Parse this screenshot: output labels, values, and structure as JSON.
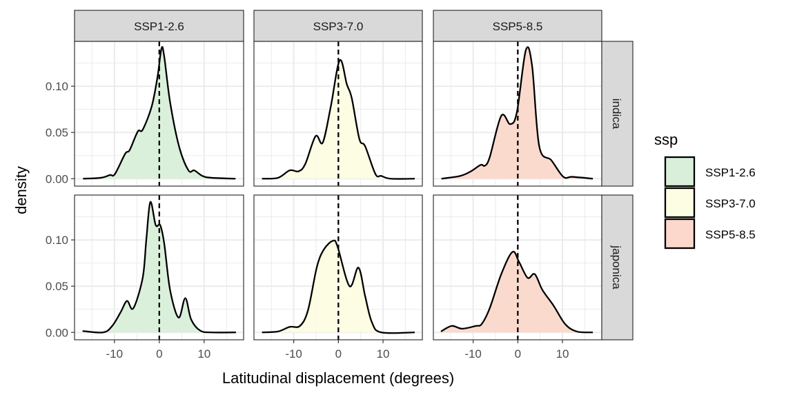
{
  "chart_data": {
    "type": "area",
    "subtype": "faceted density",
    "xlabel": "Latitudinal displacement (degrees)",
    "ylabel": "density",
    "xlim": [
      -18.9,
      18.8
    ],
    "ylim": [
      -0.008,
      0.1485
    ],
    "x_ticks": [
      -10,
      0,
      10
    ],
    "x_tick_labels": [
      "-10",
      "0",
      "10"
    ],
    "y_ticks": [
      0,
      0.05,
      0.1
    ],
    "y_tick_labels": [
      "0.00",
      "0.05",
      "0.10"
    ],
    "reference_line_x": 0,
    "grid": true,
    "facet_cols": [
      "SSP1-2.6",
      "SSP3-7.0",
      "SSP5-8.5"
    ],
    "facet_rows": [
      "indica",
      "japonica"
    ],
    "legend": {
      "title": "ssp",
      "position": "right",
      "entries": [
        {
          "label": "SSP1-2.6",
          "color": "#D9EFD9"
        },
        {
          "label": "SSP3-7.0",
          "color": "#FDFDE3"
        },
        {
          "label": "SSP5-8.5",
          "color": "#FBD8CB"
        }
      ]
    },
    "panels": [
      {
        "ssp": "SSP1-2.6",
        "group": "indica",
        "x": [
          -17,
          -13,
          -11,
          -9.9,
          -7.6,
          -6.6,
          -4.8,
          -3.7,
          -1.7,
          -0.4,
          0.5,
          1.1,
          2.4,
          4.4,
          6.5,
          7.8,
          9.6,
          11.6,
          17
        ],
        "y": [
          0,
          0.001,
          0.004,
          0.005,
          0.027,
          0.031,
          0.051,
          0.053,
          0.078,
          0.11,
          0.141,
          0.132,
          0.083,
          0.035,
          0.009,
          0.009,
          0.003,
          0.001,
          0
        ]
      },
      {
        "ssp": "SSP3-7.0",
        "group": "indica",
        "x": [
          -17.1,
          -13.5,
          -10.9,
          -8.9,
          -7.4,
          -5.1,
          -3.5,
          -1.7,
          0.3,
          1.9,
          3.0,
          4.7,
          6.0,
          8.3,
          9.6,
          11.7,
          17.1
        ],
        "y": [
          0,
          0.001,
          0.009,
          0.008,
          0.016,
          0.046,
          0.039,
          0.078,
          0.128,
          0.102,
          0.087,
          0.043,
          0.035,
          0.005,
          0.003,
          0,
          0
        ]
      },
      {
        "ssp": "SSP5-8.5",
        "group": "indica",
        "x": [
          -17.1,
          -12.9,
          -10.5,
          -8.3,
          -7.4,
          -6.3,
          -3.7,
          -1.7,
          -0.2,
          1.8,
          3.2,
          4.8,
          7.5,
          10.2,
          12.2,
          16.8
        ],
        "y": [
          0,
          0.003,
          0.008,
          0.015,
          0.014,
          0.023,
          0.068,
          0.059,
          0.072,
          0.139,
          0.122,
          0.035,
          0.02,
          0.002,
          0.002,
          0
        ]
      },
      {
        "ssp": "SSP1-2.6",
        "group": "japonica",
        "x": [
          -17.1,
          -12.5,
          -10.5,
          -8.6,
          -7.2,
          -5.8,
          -3.7,
          -2.9,
          -2.0,
          -0.8,
          0.2,
          1.1,
          2.4,
          4.3,
          5.8,
          7.1,
          9.1,
          11.7,
          17.1
        ],
        "y": [
          0.0015,
          0,
          0.007,
          0.022,
          0.034,
          0.026,
          0.059,
          0.1,
          0.141,
          0.116,
          0.116,
          0.096,
          0.046,
          0.016,
          0.037,
          0.014,
          0.002,
          0,
          0
        ]
      },
      {
        "ssp": "SSP3-7.0",
        "group": "japonica",
        "x": [
          -17.1,
          -13.5,
          -10.9,
          -8.6,
          -6.8,
          -4.8,
          -3.2,
          -1.2,
          -0.2,
          2.5,
          4.5,
          6.0,
          7.5,
          9.6,
          17.1
        ],
        "y": [
          0,
          0.001,
          0.006,
          0.007,
          0.024,
          0.071,
          0.09,
          0.099,
          0.093,
          0.05,
          0.07,
          0.039,
          0.011,
          0,
          0
        ]
      },
      {
        "ssp": "SSP5-8.5",
        "group": "japonica",
        "x": [
          -17.2,
          -14.8,
          -12.5,
          -9.4,
          -8.1,
          -6.3,
          -3.7,
          -1.2,
          0.3,
          2.2,
          3.8,
          5.5,
          8.0,
          10.6,
          13.2,
          16.8
        ],
        "y": [
          0.001,
          0.007,
          0.004,
          0.007,
          0.009,
          0.026,
          0.063,
          0.087,
          0.076,
          0.059,
          0.063,
          0.046,
          0.029,
          0.009,
          0.001,
          0
        ]
      }
    ]
  }
}
